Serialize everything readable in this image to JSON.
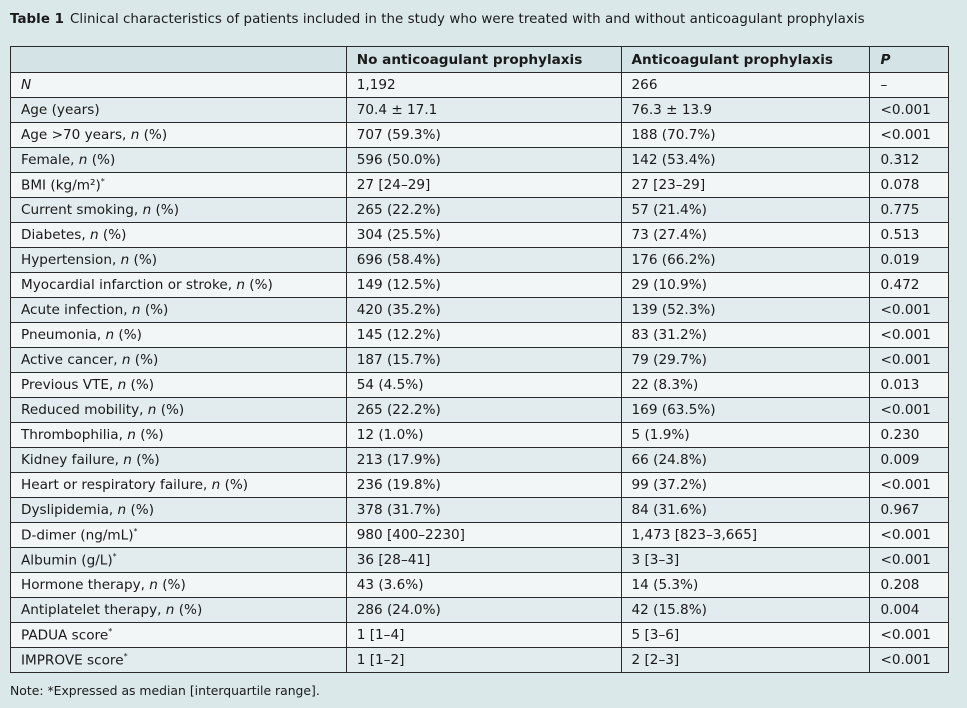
{
  "caption": {
    "label": "Table 1",
    "text": "Clinical characteristics of patients included in the study who were treated with and without anticoagulant prophylaxis"
  },
  "table": {
    "headers": [
      "",
      "No anticoagulant prophylaxis",
      "Anticoagulant prophylaxis",
      "P"
    ],
    "rows": [
      {
        "label": "N",
        "no": "1,192",
        "yes": "266",
        "p": "–"
      },
      {
        "label": "Age (years)",
        "no": "70.4 ± 17.1",
        "yes": "76.3 ± 13.9",
        "p": "<0.001"
      },
      {
        "label": "Age >70 years, n (%)",
        "no": "707 (59.3%)",
        "yes": "188 (70.7%)",
        "p": "<0.001"
      },
      {
        "label": "Female, n (%)",
        "no": "596 (50.0%)",
        "yes": "142 (53.4%)",
        "p": "0.312"
      },
      {
        "label": "BMI (kg/m²)*",
        "no": "27 [24–29]",
        "yes": "27 [23–29]",
        "p": "0.078"
      },
      {
        "label": "Current smoking, n (%)",
        "no": "265 (22.2%)",
        "yes": "57 (21.4%)",
        "p": "0.775"
      },
      {
        "label": "Diabetes, n (%)",
        "no": "304 (25.5%)",
        "yes": "73 (27.4%)",
        "p": "0.513"
      },
      {
        "label": "Hypertension, n (%)",
        "no": "696 (58.4%)",
        "yes": "176 (66.2%)",
        "p": "0.019"
      },
      {
        "label": "Myocardial infarction or stroke, n (%)",
        "no": "149 (12.5%)",
        "yes": "29 (10.9%)",
        "p": "0.472"
      },
      {
        "label": "Acute infection, n (%)",
        "no": "420 (35.2%)",
        "yes": "139 (52.3%)",
        "p": "<0.001"
      },
      {
        "label": "Pneumonia, n (%)",
        "no": "145 (12.2%)",
        "yes": "83 (31.2%)",
        "p": "<0.001"
      },
      {
        "label": "Active cancer, n (%)",
        "no": "187 (15.7%)",
        "yes": "79 (29.7%)",
        "p": "<0.001"
      },
      {
        "label": "Previous VTE, n (%)",
        "no": "54 (4.5%)",
        "yes": "22 (8.3%)",
        "p": "0.013"
      },
      {
        "label": "Reduced mobility, n (%)",
        "no": "265 (22.2%)",
        "yes": "169 (63.5%)",
        "p": "<0.001"
      },
      {
        "label": "Thrombophilia, n (%)",
        "no": "12 (1.0%)",
        "yes": "5 (1.9%)",
        "p": "0.230"
      },
      {
        "label": "Kidney failure, n (%)",
        "no": "213 (17.9%)",
        "yes": "66 (24.8%)",
        "p": "0.009"
      },
      {
        "label": "Heart or respiratory failure, n (%)",
        "no": "236 (19.8%)",
        "yes": "99 (37.2%)",
        "p": "<0.001"
      },
      {
        "label": "Dyslipidemia, n (%)",
        "no": "378 (31.7%)",
        "yes": "84 (31.6%)",
        "p": "0.967"
      },
      {
        "label": "D-dimer (ng/mL)*",
        "no": "980 [400–2230]",
        "yes": "1,473 [823–3,665]",
        "p": "<0.001"
      },
      {
        "label": "Albumin (g/L)*",
        "no": "36 [28–41]",
        "yes": "3 [3–3]",
        "p": "<0.001"
      },
      {
        "label": "Hormone therapy, n (%)",
        "no": "43 (3.6%)",
        "yes": "14 (5.3%)",
        "p": "0.208"
      },
      {
        "label": "Antiplatelet therapy, n (%)",
        "no": "286 (24.0%)",
        "yes": "42 (15.8%)",
        "p": "0.004"
      },
      {
        "label": "PADUA score*",
        "no": "1 [1–4]",
        "yes": "5 [3–6]",
        "p": "<0.001"
      },
      {
        "label": "IMPROVE score*",
        "no": "1 [1–2]",
        "yes": "2 [2–3]",
        "p": "<0.001"
      }
    ]
  },
  "note": "Note: *Expressed as median [interquartile range]."
}
